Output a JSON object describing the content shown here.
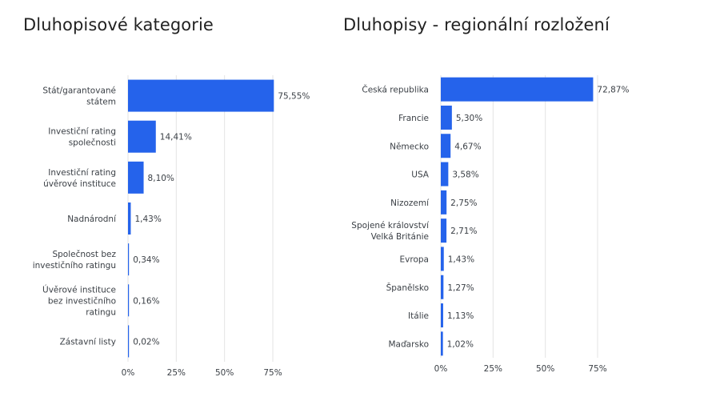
{
  "charts": {
    "left": {
      "title": "Dluhopisové kategorie"
    },
    "right": {
      "title": "Dluhopisy - regionální rozložení"
    }
  },
  "colors": {
    "bar": "#2563eb",
    "grid": "#e3e3e3",
    "text": "#3a3f45"
  },
  "chart_data": [
    {
      "type": "bar",
      "orientation": "horizontal",
      "title": "Dluhopisové kategorie",
      "categories": [
        [
          "Stát/garantované",
          "státem"
        ],
        [
          "Investiční rating",
          "společnosti"
        ],
        [
          "Investiční rating",
          "úvěrové instituce"
        ],
        [
          "Nadnárodní"
        ],
        [
          "Společnost bez",
          "investičního ratingu"
        ],
        [
          "Úvěrové instituce",
          "bez investičního",
          "ratingu"
        ],
        [
          "Zástavní listy"
        ]
      ],
      "values": [
        75.55,
        14.41,
        8.1,
        1.43,
        0.34,
        0.16,
        0.02
      ],
      "value_labels": [
        "75,55%",
        "14,41%",
        "8,10%",
        "1,43%",
        "0,34%",
        "0,16%",
        "0,02%"
      ],
      "xlim": [
        0,
        75
      ],
      "xticks": [
        0,
        25,
        50,
        75
      ],
      "xtick_labels": [
        "0%",
        "25%",
        "50%",
        "75%"
      ],
      "grid": true
    },
    {
      "type": "bar",
      "orientation": "horizontal",
      "title": "Dluhopisy - regionální rozložení",
      "categories": [
        [
          "Česká republika"
        ],
        [
          "Francie"
        ],
        [
          "Německo"
        ],
        [
          "USA"
        ],
        [
          "Nizozemí"
        ],
        [
          "Spojené království",
          "Velká Británie"
        ],
        [
          "Evropa"
        ],
        [
          "Španělsko"
        ],
        [
          "Itálie"
        ],
        [
          "Maďarsko"
        ]
      ],
      "values": [
        72.87,
        5.3,
        4.67,
        3.58,
        2.75,
        2.71,
        1.43,
        1.27,
        1.13,
        1.02
      ],
      "value_labels": [
        "72,87%",
        "5,30%",
        "4,67%",
        "3,58%",
        "2,75%",
        "2,71%",
        "1,43%",
        "1,27%",
        "1,13%",
        "1,02%"
      ],
      "xlim": [
        0,
        75
      ],
      "xticks": [
        0,
        25,
        50,
        75
      ],
      "xtick_labels": [
        "0%",
        "25%",
        "50%",
        "75%"
      ],
      "grid": true
    }
  ]
}
